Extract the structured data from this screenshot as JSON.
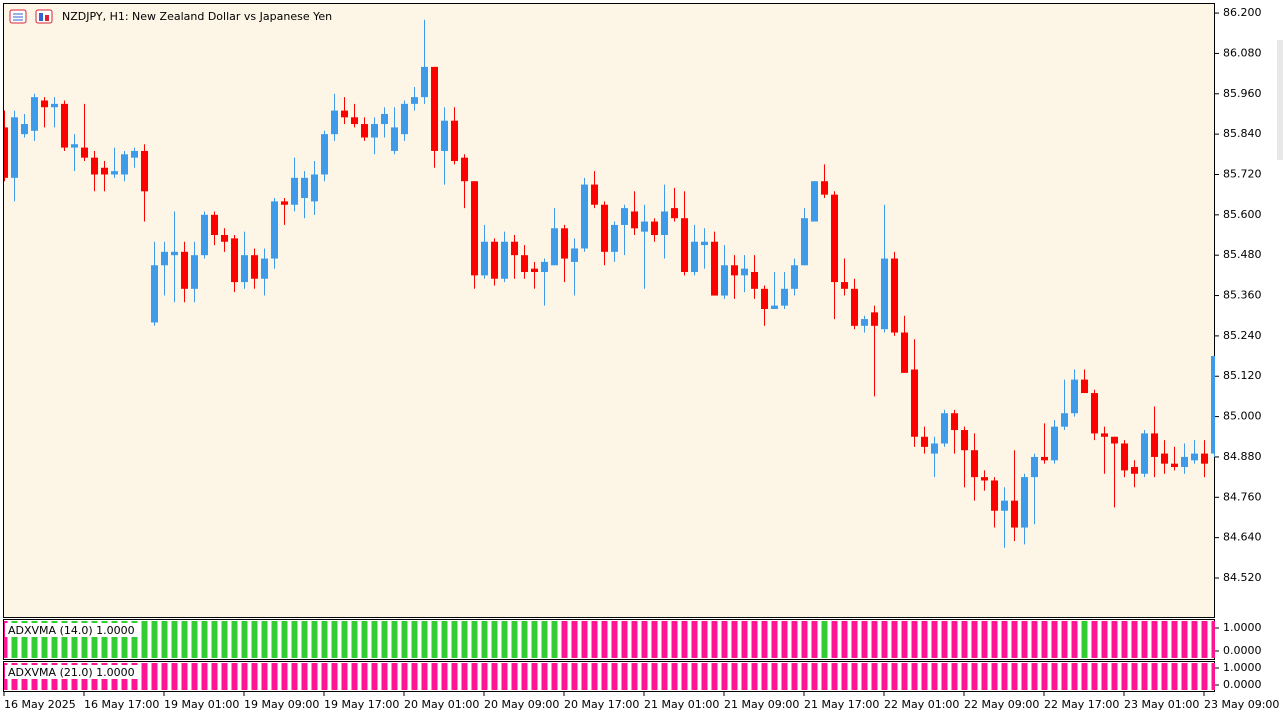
{
  "chart_data": [
    {
      "type": "candlestick",
      "title": "NZDJPY, H1:  New Zealand Dollar vs Japanese Yen",
      "up_color": "#3d9be9",
      "down_color": "#ff0000",
      "categories": [
        "16 May 2025",
        null,
        null,
        null,
        null,
        null,
        null,
        null,
        "16 May 17:00",
        null,
        null,
        null,
        null,
        null,
        null,
        null,
        "19 May 01:00",
        null,
        null,
        null,
        null,
        null,
        null,
        null,
        "19 May 09:00",
        null,
        null,
        null,
        null,
        null,
        null,
        null,
        "19 May 17:00",
        null,
        null,
        null,
        null,
        null,
        null,
        null,
        "20 May 01:00",
        null,
        null,
        null,
        null,
        null,
        null,
        null,
        "20 May 09:00",
        null,
        null,
        null,
        null,
        null,
        null,
        null,
        "20 May 17:00",
        null,
        null,
        null,
        null,
        null,
        null,
        null,
        "21 May 01:00",
        null,
        null,
        null,
        null,
        null,
        null,
        null,
        "21 May 09:00",
        null,
        null,
        null,
        null,
        null,
        null,
        null,
        "21 May 17:00",
        null,
        null,
        null,
        null,
        null,
        null,
        null,
        "22 May 01:00",
        null,
        null,
        null,
        null,
        null,
        null,
        null,
        "22 May 09:00",
        null,
        null,
        null,
        null,
        null,
        null,
        null,
        "22 May 17:00",
        null,
        null,
        null,
        null,
        null,
        null,
        null,
        "23 May 01:00",
        null,
        null,
        null,
        null,
        null,
        null,
        null,
        "23 May 09:00",
        null
      ],
      "open": [
        85.86,
        85.71,
        85.84,
        85.85,
        85.94,
        85.92,
        85.93,
        85.8,
        85.8,
        85.77,
        85.74,
        85.72,
        85.72,
        85.77,
        85.79,
        85.28,
        85.45,
        85.48,
        85.49,
        85.38,
        85.48,
        85.6,
        85.54,
        85.53,
        85.4,
        85.48,
        85.41,
        85.47,
        85.64,
        85.63,
        85.65,
        85.64,
        85.72,
        85.84,
        85.91,
        85.89,
        85.87,
        85.83,
        85.87,
        85.79,
        85.84,
        85.93,
        85.95,
        86.04,
        85.79,
        85.88,
        85.77,
        85.7,
        85.42,
        85.52,
        85.41,
        85.52,
        85.48,
        85.44,
        85.43,
        85.45,
        85.56,
        85.46,
        85.5,
        85.69,
        85.63,
        85.49,
        85.57,
        85.61,
        85.55,
        85.58,
        85.54,
        85.62,
        85.59,
        85.43,
        85.51,
        85.52,
        85.36,
        85.45,
        85.42,
        85.43,
        85.38,
        85.32,
        85.33,
        85.38,
        85.45,
        85.58,
        85.7,
        85.66,
        85.4,
        85.38,
        85.27,
        85.31,
        85.26,
        85.47,
        85.25,
        85.14,
        84.94,
        84.89,
        84.92,
        85.01,
        84.96,
        84.9,
        84.82,
        84.81,
        84.72,
        84.75,
        84.67,
        84.82,
        84.88,
        84.87,
        84.97,
        85.01,
        85.11,
        85.07,
        84.95,
        84.94,
        84.92,
        84.85,
        84.83,
        84.95,
        84.89,
        84.86,
        84.85,
        84.87,
        84.89,
        84.89
      ],
      "high": [
        85.91,
        85.91,
        85.9,
        85.96,
        85.95,
        85.95,
        85.94,
        85.84,
        85.93,
        85.79,
        85.76,
        85.8,
        85.79,
        85.8,
        85.81,
        85.52,
        85.52,
        85.61,
        85.52,
        85.52,
        85.61,
        85.61,
        85.56,
        85.54,
        85.55,
        85.5,
        85.5,
        85.65,
        85.65,
        85.77,
        85.73,
        85.76,
        85.85,
        85.96,
        85.95,
        85.93,
        85.89,
        85.89,
        85.92,
        85.92,
        85.94,
        85.98,
        86.18,
        86.04,
        85.92,
        85.92,
        85.78,
        85.7,
        85.57,
        85.53,
        85.55,
        85.54,
        85.51,
        85.46,
        85.47,
        85.62,
        85.57,
        85.53,
        85.71,
        85.73,
        85.64,
        85.58,
        85.63,
        85.67,
        85.63,
        85.59,
        85.69,
        85.68,
        85.67,
        85.57,
        85.56,
        85.55,
        85.51,
        85.48,
        85.48,
        85.48,
        85.39,
        85.43,
        85.43,
        85.47,
        85.62,
        85.7,
        85.75,
        85.67,
        85.47,
        85.41,
        85.3,
        85.33,
        85.63,
        85.49,
        85.3,
        85.23,
        84.97,
        84.94,
        85.02,
        85.02,
        84.97,
        84.95,
        84.84,
        84.82,
        84.79,
        84.9,
        84.83,
        84.89,
        84.98,
        84.99,
        85.11,
        85.14,
        85.14,
        85.08,
        84.97,
        84.94,
        84.93,
        84.87,
        84.96,
        85.03,
        84.93,
        84.91,
        84.92,
        84.93,
        84.93,
        85.18
      ],
      "low": [
        85.7,
        85.64,
        85.83,
        85.82,
        85.86,
        85.86,
        85.79,
        85.73,
        85.76,
        85.67,
        85.67,
        85.71,
        85.7,
        85.74,
        85.58,
        85.27,
        85.36,
        85.34,
        85.34,
        85.34,
        85.47,
        85.51,
        85.49,
        85.37,
        85.38,
        85.38,
        85.36,
        85.44,
        85.57,
        85.61,
        85.59,
        85.6,
        85.7,
        85.82,
        85.87,
        85.86,
        85.82,
        85.78,
        85.83,
        85.78,
        85.82,
        85.91,
        85.93,
        85.74,
        85.69,
        85.75,
        85.62,
        85.38,
        85.41,
        85.39,
        85.4,
        85.41,
        85.41,
        85.38,
        85.33,
        85.45,
        85.4,
        85.36,
        85.49,
        85.62,
        85.45,
        85.46,
        85.48,
        85.54,
        85.38,
        85.52,
        85.47,
        85.58,
        85.42,
        85.42,
        85.44,
        85.36,
        85.35,
        85.35,
        85.37,
        85.35,
        85.27,
        85.32,
        85.32,
        85.36,
        85.45,
        85.58,
        85.65,
        85.29,
        85.36,
        85.26,
        85.25,
        85.06,
        85.25,
        85.24,
        85.13,
        84.91,
        84.89,
        84.82,
        84.91,
        84.89,
        84.79,
        84.75,
        84.78,
        84.67,
        84.61,
        84.63,
        84.62,
        84.68,
        84.86,
        84.86,
        84.96,
        85.0,
        85.07,
        84.93,
        84.83,
        84.73,
        84.82,
        84.79,
        84.82,
        84.82,
        84.83,
        84.84,
        84.83,
        84.86,
        84.82,
        84.88
      ],
      "close": [
        85.71,
        85.89,
        85.87,
        85.95,
        85.92,
        85.93,
        85.8,
        85.81,
        85.77,
        85.72,
        85.72,
        85.73,
        85.78,
        85.79,
        85.67,
        85.45,
        85.49,
        85.49,
        85.38,
        85.48,
        85.6,
        85.54,
        85.52,
        85.4,
        85.48,
        85.41,
        85.47,
        85.64,
        85.63,
        85.71,
        85.71,
        85.72,
        85.84,
        85.91,
        85.89,
        85.87,
        85.83,
        85.87,
        85.9,
        85.86,
        85.93,
        85.95,
        86.04,
        85.79,
        85.88,
        85.76,
        85.7,
        85.42,
        85.52,
        85.41,
        85.52,
        85.48,
        85.43,
        85.43,
        85.46,
        85.56,
        85.47,
        85.5,
        85.69,
        85.63,
        85.49,
        85.57,
        85.62,
        85.56,
        85.58,
        85.54,
        85.61,
        85.59,
        85.43,
        85.52,
        85.52,
        85.36,
        85.45,
        85.42,
        85.44,
        85.38,
        85.32,
        85.33,
        85.38,
        85.45,
        85.59,
        85.7,
        85.66,
        85.4,
        85.38,
        85.27,
        85.29,
        85.27,
        85.47,
        85.25,
        85.13,
        84.94,
        84.91,
        84.92,
        85.01,
        84.96,
        84.9,
        84.82,
        84.81,
        84.72,
        84.75,
        84.67,
        84.82,
        84.88,
        84.87,
        84.97,
        85.01,
        85.11,
        85.07,
        84.95,
        84.94,
        84.92,
        84.84,
        84.83,
        84.95,
        84.88,
        84.86,
        84.85,
        84.88,
        84.89,
        84.86,
        85.18
      ],
      "ylim": [
        84.404,
        86.227
      ],
      "yticks": [
        {
          "value": 86.2,
          "label": "86.200"
        },
        {
          "value": 86.08,
          "label": "86.080"
        },
        {
          "value": 85.96,
          "label": "85.960"
        },
        {
          "value": 85.84,
          "label": "85.840"
        },
        {
          "value": 85.72,
          "label": "85.720"
        },
        {
          "value": 85.6,
          "label": "85.600"
        },
        {
          "value": 85.48,
          "label": "85.480"
        },
        {
          "value": 85.36,
          "label": "85.360"
        },
        {
          "value": 85.24,
          "label": "85.240"
        },
        {
          "value": 85.12,
          "label": "85.120"
        },
        {
          "value": 85.0,
          "label": "85.000"
        },
        {
          "value": 84.88,
          "label": "84.880"
        },
        {
          "value": 84.76,
          "label": "84.760"
        },
        {
          "value": 84.64,
          "label": "84.640"
        },
        {
          "value": 84.52,
          "label": "84.520"
        }
      ]
    },
    {
      "type": "histogram_pane",
      "title": "ADXVMA (14.0) 1.0000",
      "values": [
        1,
        1,
        1,
        1,
        1,
        1,
        1,
        1,
        1,
        1,
        1,
        1,
        1,
        1,
        1,
        1,
        1,
        1,
        1,
        1,
        1,
        1,
        1,
        1,
        1,
        1,
        1,
        1,
        1,
        1,
        1,
        1,
        1,
        1,
        1,
        1,
        1,
        1,
        1,
        1,
        1,
        1,
        1,
        1,
        1,
        1,
        1,
        1,
        1,
        1,
        1,
        1,
        1,
        1,
        1,
        1,
        1,
        1,
        1,
        1,
        1,
        1,
        1,
        1,
        1,
        1,
        1,
        1,
        1,
        1,
        1,
        1,
        1,
        1,
        1,
        1,
        1,
        1,
        1,
        1,
        1,
        1,
        1,
        1,
        1,
        1,
        1,
        1,
        1,
        1,
        1,
        1,
        1,
        1,
        1,
        1,
        1,
        1,
        1,
        1,
        1,
        1,
        1,
        1,
        1,
        1,
        1,
        1,
        1,
        1,
        1,
        1,
        1,
        1,
        1,
        1,
        1,
        1,
        1,
        1,
        1,
        1
      ],
      "colors": [
        "deeppink",
        "limegreen",
        "limegreen",
        "limegreen",
        "limegreen",
        "limegreen",
        "limegreen",
        "limegreen",
        "limegreen",
        "limegreen",
        "limegreen",
        "limegreen",
        "limegreen",
        "limegreen",
        "limegreen",
        "limegreen",
        "limegreen",
        "limegreen",
        "limegreen",
        "limegreen",
        "limegreen",
        "limegreen",
        "limegreen",
        "limegreen",
        "limegreen",
        "limegreen",
        "limegreen",
        "limegreen",
        "limegreen",
        "limegreen",
        "limegreen",
        "limegreen",
        "limegreen",
        "limegreen",
        "limegreen",
        "limegreen",
        "limegreen",
        "limegreen",
        "limegreen",
        "limegreen",
        "limegreen",
        "limegreen",
        "limegreen",
        "limegreen",
        "limegreen",
        "limegreen",
        "limegreen",
        "limegreen",
        "limegreen",
        "limegreen",
        "limegreen",
        "limegreen",
        "limegreen",
        "limegreen",
        "limegreen",
        "limegreen",
        "deeppink",
        "deeppink",
        "deeppink",
        "deeppink",
        "deeppink",
        "deeppink",
        "deeppink",
        "deeppink",
        "deeppink",
        "deeppink",
        "deeppink",
        "deeppink",
        "deeppink",
        "deeppink",
        "deeppink",
        "deeppink",
        "deeppink",
        "deeppink",
        "deeppink",
        "deeppink",
        "deeppink",
        "deeppink",
        "deeppink",
        "deeppink",
        "deeppink",
        "deeppink",
        "limegreen",
        "deeppink",
        "deeppink",
        "deeppink",
        "deeppink",
        "deeppink",
        "deeppink",
        "deeppink",
        "deeppink",
        "deeppink",
        "deeppink",
        "deeppink",
        "deeppink",
        "deeppink",
        "deeppink",
        "deeppink",
        "deeppink",
        "deeppink",
        "deeppink",
        "deeppink",
        "deeppink",
        "deeppink",
        "deeppink",
        "deeppink",
        "deeppink",
        "deeppink",
        "limegreen",
        "deeppink",
        "deeppink",
        "deeppink",
        "deeppink",
        "deeppink",
        "deeppink",
        "deeppink",
        "deeppink",
        "deeppink",
        "deeppink",
        "deeppink",
        "deeppink",
        "deeppink"
      ],
      "ylim": [
        0,
        1
      ],
      "yticks": [
        {
          "value": 1,
          "label": "1.0000"
        },
        {
          "value": 0,
          "label": "0.0000"
        }
      ]
    },
    {
      "type": "histogram_pane",
      "title": "ADXVMA (21.0) 1.0000",
      "values": [
        1,
        1,
        1,
        1,
        1,
        1,
        1,
        1,
        1,
        1,
        1,
        1,
        1,
        1,
        1,
        1,
        1,
        1,
        1,
        1,
        1,
        1,
        1,
        1,
        1,
        1,
        1,
        1,
        1,
        1,
        1,
        1,
        1,
        1,
        1,
        1,
        1,
        1,
        1,
        1,
        1,
        1,
        1,
        1,
        1,
        1,
        1,
        1,
        1,
        1,
        1,
        1,
        1,
        1,
        1,
        1,
        1,
        1,
        1,
        1,
        1,
        1,
        1,
        1,
        1,
        1,
        1,
        1,
        1,
        1,
        1,
        1,
        1,
        1,
        1,
        1,
        1,
        1,
        1,
        1,
        1,
        1,
        1,
        1,
        1,
        1,
        1,
        1,
        1,
        1,
        1,
        1,
        1,
        1,
        1,
        1,
        1,
        1,
        1,
        1,
        1,
        1,
        1,
        1,
        1,
        1,
        1,
        1,
        1,
        1,
        1,
        1,
        1,
        1,
        1,
        1,
        1,
        1,
        1,
        1,
        1,
        1
      ],
      "colors": [
        "deeppink",
        "deeppink",
        "deeppink",
        "deeppink",
        "deeppink",
        "deeppink",
        "deeppink",
        "deeppink",
        "deeppink",
        "deeppink",
        "deeppink",
        "deeppink",
        "deeppink",
        "deeppink",
        "deeppink",
        "deeppink",
        "deeppink",
        "deeppink",
        "deeppink",
        "deeppink",
        "deeppink",
        "deeppink",
        "deeppink",
        "deeppink",
        "deeppink",
        "deeppink",
        "deeppink",
        "deeppink",
        "deeppink",
        "deeppink",
        "deeppink",
        "deeppink",
        "deeppink",
        "deeppink",
        "deeppink",
        "deeppink",
        "deeppink",
        "deeppink",
        "deeppink",
        "deeppink",
        "deeppink",
        "deeppink",
        "deeppink",
        "deeppink",
        "deeppink",
        "deeppink",
        "deeppink",
        "deeppink",
        "deeppink",
        "deeppink",
        "deeppink",
        "deeppink",
        "deeppink",
        "deeppink",
        "deeppink",
        "deeppink",
        "deeppink",
        "deeppink",
        "deeppink",
        "deeppink",
        "deeppink",
        "deeppink",
        "deeppink",
        "deeppink",
        "deeppink",
        "deeppink",
        "deeppink",
        "deeppink",
        "deeppink",
        "deeppink",
        "deeppink",
        "deeppink",
        "deeppink",
        "deeppink",
        "deeppink",
        "deeppink",
        "deeppink",
        "deeppink",
        "deeppink",
        "deeppink",
        "deeppink",
        "deeppink",
        "deeppink",
        "deeppink",
        "deeppink",
        "deeppink",
        "deeppink",
        "deeppink",
        "deeppink",
        "deeppink",
        "deeppink",
        "deeppink",
        "deeppink",
        "deeppink",
        "deeppink",
        "deeppink",
        "deeppink",
        "deeppink",
        "deeppink",
        "deeppink",
        "deeppink",
        "deeppink",
        "deeppink",
        "deeppink",
        "deeppink",
        "deeppink",
        "deeppink",
        "deeppink",
        "deeppink",
        "deeppink",
        "deeppink",
        "deeppink",
        "deeppink",
        "deeppink",
        "deeppink",
        "deeppink",
        "deeppink",
        "deeppink",
        "deeppink",
        "deeppink",
        "deeppink",
        "deeppink"
      ],
      "ylim": [
        0,
        1
      ],
      "yticks": [
        {
          "value": 1,
          "label": "1.0000"
        },
        {
          "value": 0,
          "label": "0.0000"
        }
      ]
    }
  ]
}
